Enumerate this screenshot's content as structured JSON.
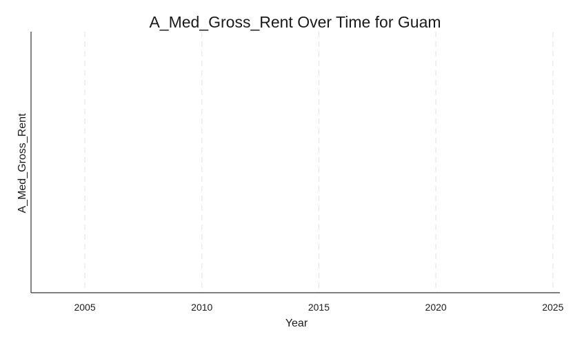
{
  "chart_data": {
    "type": "line",
    "title": "A_Med_Gross_Rent Over Time for Guam",
    "xlabel": "Year",
    "ylabel": "A_Med_Gross_Rent",
    "x_ticks": [
      2005,
      2010,
      2015,
      2020,
      2025
    ],
    "xlim": [
      2002.7,
      2025.3
    ],
    "series": [],
    "grid": "x-dashed",
    "colors": {
      "grid": "#e6e6e6",
      "axis": "#333333",
      "text": "#1a1a1a"
    }
  }
}
